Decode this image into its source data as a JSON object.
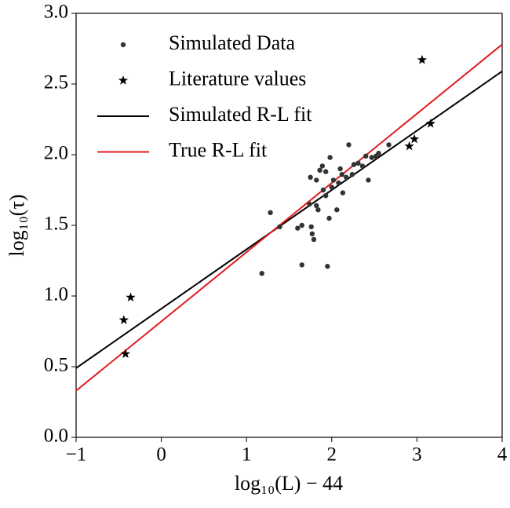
{
  "chart_data": {
    "type": "scatter",
    "xlabel": "log₁₀(L) − 44",
    "ylabel": "log₁₀(τ)",
    "xlim": [
      -1,
      4
    ],
    "ylim": [
      0,
      3
    ],
    "xticks": [
      {
        "value": -1,
        "label": "−1"
      },
      0,
      1,
      2,
      3,
      4
    ],
    "yticks": [
      {
        "value": 0,
        "label": "0.0"
      },
      {
        "value": 0.5,
        "label": "0.5"
      },
      {
        "value": 1,
        "label": "1.0"
      },
      {
        "value": 1.5,
        "label": "1.5"
      },
      {
        "value": 2,
        "label": "2.0"
      },
      {
        "value": 2.5,
        "label": "2.5"
      },
      {
        "value": 3,
        "label": "3.0"
      }
    ],
    "legend": "upper left",
    "series": [
      {
        "name": "Simulated Data",
        "kind": "dot",
        "color": "#333333",
        "x": [
          1.18,
          1.28,
          1.39,
          1.6,
          1.65,
          1.65,
          1.74,
          1.76,
          1.77,
          1.79,
          1.75,
          1.82,
          1.82,
          1.84,
          1.86,
          1.89,
          1.93,
          1.9,
          1.93,
          1.95,
          1.97,
          1.98,
          2.0,
          2.02,
          2.06,
          2.08,
          2.1,
          2.13,
          2.12,
          2.17,
          2.2,
          2.24,
          2.26,
          2.31,
          2.36,
          2.4,
          2.43,
          2.47,
          2.52,
          2.55,
          2.67
        ],
        "values": [
          1.16,
          1.59,
          1.49,
          1.48,
          1.5,
          1.22,
          1.65,
          1.49,
          1.44,
          1.4,
          1.84,
          1.82,
          1.64,
          1.61,
          1.89,
          1.92,
          1.88,
          1.75,
          1.71,
          1.21,
          1.55,
          1.98,
          1.77,
          1.82,
          1.61,
          1.8,
          1.9,
          1.73,
          1.86,
          1.84,
          2.07,
          1.86,
          1.93,
          1.94,
          1.92,
          1.99,
          1.82,
          1.98,
          1.99,
          2.01,
          2.07
        ]
      },
      {
        "name": "Literature values",
        "kind": "star",
        "color": "#000000",
        "x": [
          -0.44,
          -0.36,
          -0.42,
          2.91,
          2.97,
          3.16,
          3.06
        ],
        "values": [
          0.83,
          0.99,
          0.59,
          2.06,
          2.11,
          2.22,
          2.67
        ]
      },
      {
        "name": "Simulated R-L fit",
        "kind": "line",
        "color": "#000000",
        "x": [
          -1,
          4
        ],
        "values": [
          0.49,
          2.59
        ]
      },
      {
        "name": "True R-L fit",
        "kind": "line",
        "color": "#e41a1c",
        "x": [
          -1,
          4
        ],
        "values": [
          0.33,
          2.78
        ]
      }
    ]
  }
}
